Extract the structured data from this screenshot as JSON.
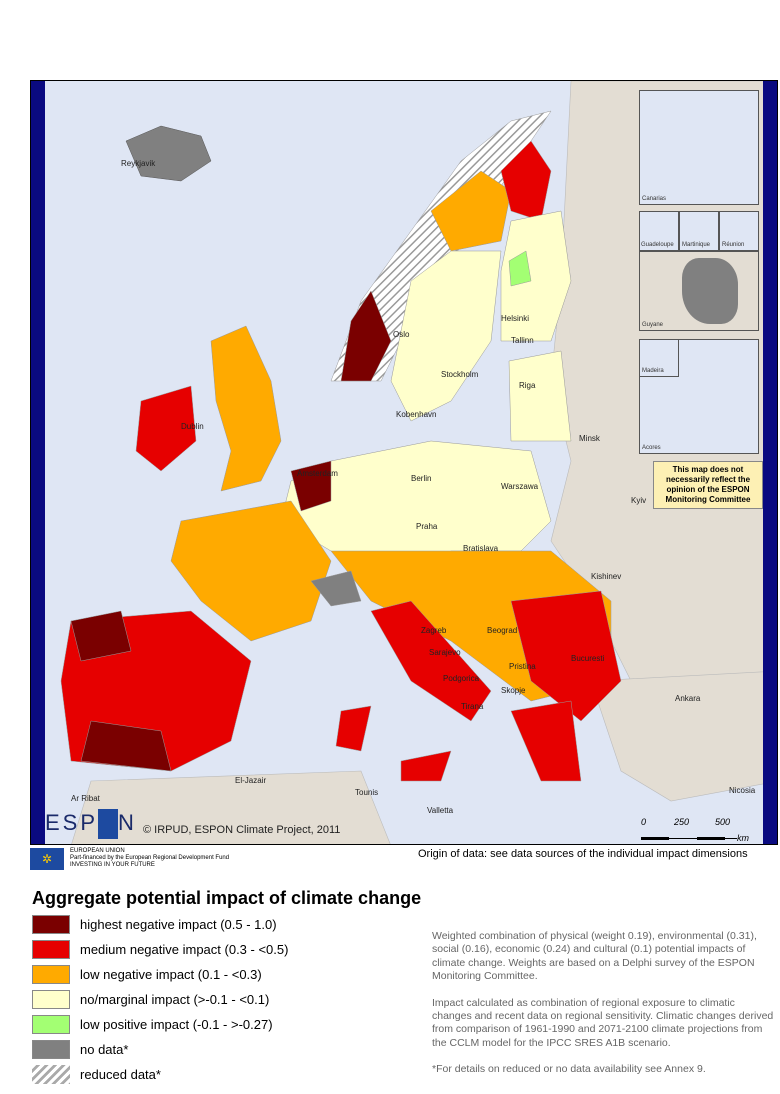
{
  "map": {
    "title": "Aggregate potential impact of climate change",
    "copyright": "© IRPUD, ESPON Climate Project, 2011",
    "logo_text": "ESPON",
    "disclaimer": "This map does not necessarily reflect the opinion of the ESPON Monitoring Committee",
    "insets": [
      "Canarias",
      "Guadeloupe",
      "Martinique",
      "Réunion",
      "Guyane",
      "Madeira",
      "Acores"
    ],
    "scale": {
      "labels": [
        "0",
        "250",
        "500"
      ],
      "unit": "km"
    },
    "cities": [
      "Reykjavik",
      "Oslo",
      "Stockholm",
      "Helsinki",
      "Tallinn",
      "Riga",
      "Kobenhavn",
      "Dublin",
      "Minsk",
      "Amsterdam",
      "Berlin",
      "Warszawa",
      "Kyiv",
      "Praha",
      "Bratislava",
      "Kishinev",
      "Zagreb",
      "Beograd",
      "Bucuresti",
      "Sarajevo",
      "Pristina",
      "Podgorica",
      "Skopje",
      "Tirana",
      "Ankara",
      "El-Jazair",
      "Tounis",
      "Ar Ribat",
      "Valletta",
      "Nicosia"
    ]
  },
  "footer": {
    "eu_lines": [
      "EUROPEAN UNION",
      "Part-financed by the European Regional Development Fund",
      "INVESTING IN YOUR FUTURE"
    ],
    "origin": "Origin of data: see data sources of the individual impact dimensions"
  },
  "legend": [
    {
      "label": "highest negative impact (0.5 - 1.0)",
      "color": "#7a0000"
    },
    {
      "label": "medium negative impact (0.3 - <0.5)",
      "color": "#e60000"
    },
    {
      "label": "low negative impact (0.1 - <0.3)",
      "color": "#ffaa00"
    },
    {
      "label": "no/marginal impact (>-0.1 - <0.1)",
      "color": "#ffffcc"
    },
    {
      "label": "low positive impact (-0.1 - >-0.27)",
      "color": "#a3ff73"
    },
    {
      "label": "no data*",
      "color": "#808080"
    },
    {
      "label": "reduced data*",
      "color": "hatched"
    }
  ],
  "description": [
    "Weighted combination of physical (weight 0.19), environmental (0.31), social (0.16), economic (0.24) and cultural (0.1) potential impacts of climate change. Weights are based on a Delphi survey of the ESPON Monitoring Committee.",
    "Impact calculated as combination of regional exposure to climatic changes and recent data on regional sensitivity. Climatic changes derived from comparison of 1961-1990 and 2071-2100 climate projections from the CCLM model for the IPCC SRES A1B scenario.",
    "*For details on reduced or no data availability see Annex 9."
  ]
}
